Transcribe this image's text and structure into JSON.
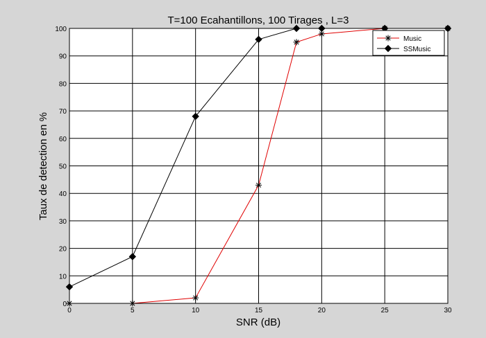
{
  "chart_data": {
    "type": "line",
    "title": "T=100 Ecahantillons,  100 Tirages   , L=3",
    "xlabel": "SNR (dB)",
    "ylabel": "Taux de detection en %",
    "xlim": [
      0,
      30
    ],
    "ylim": [
      0,
      100
    ],
    "x_ticks": [
      0,
      5,
      10,
      15,
      20,
      25,
      30
    ],
    "y_ticks": [
      0,
      10,
      20,
      30,
      40,
      50,
      60,
      70,
      80,
      90,
      100
    ],
    "grid": true,
    "legend_position": "top-right",
    "series": [
      {
        "name": "Music",
        "color": "#e00000",
        "marker": "asterisk",
        "x": [
          0,
          5,
          10,
          15,
          18,
          20,
          25,
          30
        ],
        "y": [
          0,
          0,
          2,
          43,
          95,
          98,
          100,
          100
        ]
      },
      {
        "name": "SSMusic",
        "color": "#000000",
        "marker": "diamond",
        "x": [
          0,
          5,
          10,
          15,
          18,
          20,
          25,
          30
        ],
        "y": [
          6,
          17,
          68,
          96,
          100,
          100,
          100,
          100
        ]
      }
    ]
  }
}
